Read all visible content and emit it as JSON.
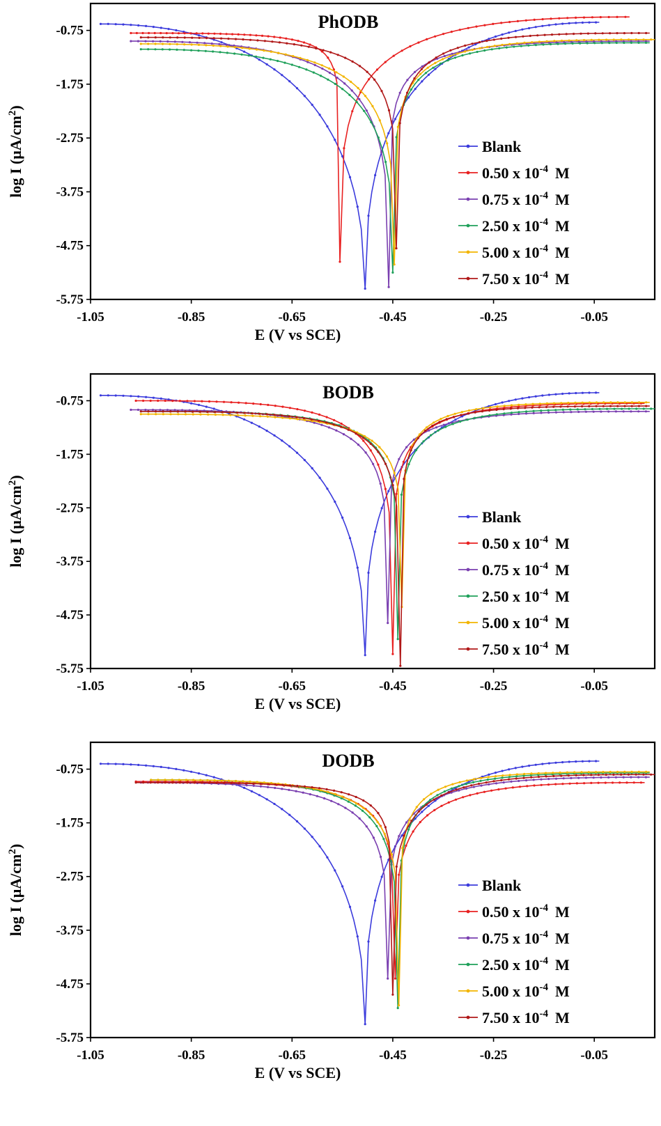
{
  "chart_data": [
    {
      "type": "line",
      "title": "PhODB",
      "xlabel": "E (V vs SCE)",
      "ylabel_base": "log I (μA/cm",
      "ylabel_sup": "2",
      "ylabel_end": ")",
      "xlim": [
        -1.05,
        0.07
      ],
      "ylim": [
        -5.75,
        -0.25
      ],
      "xticks": [
        "-1.05",
        "-0.85",
        "-0.65",
        "-0.45",
        "-0.25",
        "-0.05"
      ],
      "yticks": [
        "-0.75",
        "-1.75",
        "-2.75",
        "-3.75",
        "-4.75",
        "-5.75"
      ],
      "series": [
        {
          "name": "Blank",
          "color": "#3b3bdc",
          "ecorr": -0.505,
          "min": -5.55,
          "left": [
            -1.03,
            -0.63
          ],
          "right": [
            -0.04,
            -0.6
          ],
          "cat": [
            1.0,
            0.5
          ],
          "an": [
            1.0,
            0.45
          ]
        },
        {
          "name": "0.50 x 10",
          "color": "#e82020",
          "ecorr": -0.555,
          "min": -5.05,
          "left": [
            -0.97,
            -0.8
          ],
          "right": [
            0.02,
            -0.5
          ],
          "cat": [
            1.45,
            0.18
          ],
          "an": [
            1.1,
            0.32
          ]
        },
        {
          "name": "0.75 x 10",
          "color": "#7a3fb0",
          "ecorr": -0.458,
          "min": -5.52,
          "left": [
            -0.97,
            -0.95
          ],
          "right": [
            0.06,
            -0.95
          ],
          "cat": [
            1.15,
            0.33
          ],
          "an": [
            1.25,
            0.22
          ]
        },
        {
          "name": "2.50 x 10",
          "color": "#1fa05a",
          "ecorr": -0.45,
          "min": -5.25,
          "left": [
            -0.95,
            -1.1
          ],
          "right": [
            0.06,
            -0.98
          ],
          "cat": [
            1.1,
            0.36
          ],
          "an": [
            1.45,
            0.28
          ]
        },
        {
          "name": "5.00 x 10",
          "color": "#f2b400",
          "ecorr": -0.447,
          "min": -5.1,
          "left": [
            -0.95,
            -1.0
          ],
          "right": [
            0.07,
            -0.92
          ],
          "cat": [
            1.15,
            0.33
          ],
          "an": [
            1.35,
            0.26
          ]
        },
        {
          "name": "7.50 x 10",
          "color": "#b01818",
          "ecorr": -0.443,
          "min": -4.8,
          "left": [
            -0.95,
            -0.88
          ],
          "right": [
            0.06,
            -0.8
          ],
          "cat": [
            1.3,
            0.28
          ],
          "an": [
            1.4,
            0.28
          ]
        }
      ],
      "legend": {
        "position": "right",
        "superscript": "-4",
        "unit": "M"
      }
    },
    {
      "type": "line",
      "title": "BODB",
      "xlabel": "E (V vs SCE)",
      "ylabel_base": "log I (μA/cm",
      "ylabel_sup": "2",
      "ylabel_end": ")",
      "xlim": [
        -1.05,
        0.07
      ],
      "ylim": [
        -5.75,
        -0.25
      ],
      "xticks": [
        "-1.05",
        "-0.85",
        "-0.65",
        "-0.45",
        "-0.25",
        "-0.05"
      ],
      "yticks": [
        "-0.75",
        "-1.75",
        "-2.75",
        "-3.75",
        "-4.75",
        "-5.75"
      ],
      "series": [
        {
          "name": "Blank",
          "color": "#3b3bdc",
          "ecorr": -0.505,
          "min": -5.5,
          "left": [
            -1.03,
            -0.65
          ],
          "right": [
            -0.04,
            -0.6
          ],
          "cat": [
            1.05,
            0.48
          ],
          "an": [
            1.05,
            0.42
          ]
        },
        {
          "name": "0.50 x 10",
          "color": "#e82020",
          "ecorr": -0.45,
          "min": -5.48,
          "left": [
            -0.96,
            -0.75
          ],
          "right": [
            0.05,
            -0.8
          ],
          "cat": [
            1.5,
            0.3
          ],
          "an": [
            1.4,
            0.25
          ]
        },
        {
          "name": "0.75 x 10",
          "color": "#7a3fb0",
          "ecorr": -0.46,
          "min": -4.9,
          "left": [
            -0.97,
            -0.92
          ],
          "right": [
            0.06,
            -0.95
          ],
          "cat": [
            1.3,
            0.28
          ],
          "an": [
            1.35,
            0.24
          ]
        },
        {
          "name": "2.50 x 10",
          "color": "#1fa05a",
          "ecorr": -0.44,
          "min": -5.2,
          "left": [
            -0.95,
            -0.95
          ],
          "right": [
            0.07,
            -0.9
          ],
          "cat": [
            1.45,
            0.26
          ],
          "an": [
            1.45,
            0.26
          ]
        },
        {
          "name": "5.00 x 10",
          "color": "#f2b400",
          "ecorr": -0.432,
          "min": -4.6,
          "left": [
            -0.95,
            -1.0
          ],
          "right": [
            0.06,
            -0.78
          ],
          "cat": [
            1.35,
            0.26
          ],
          "an": [
            1.45,
            0.24
          ]
        },
        {
          "name": "7.50 x 10",
          "color": "#b01818",
          "ecorr": -0.435,
          "min": -5.7,
          "left": [
            -0.95,
            -0.95
          ],
          "right": [
            0.06,
            -0.85
          ],
          "cat": [
            1.45,
            0.26
          ],
          "an": [
            1.55,
            0.22
          ]
        }
      ],
      "legend": {
        "position": "right",
        "superscript": "-4",
        "unit": "M"
      }
    },
    {
      "type": "line",
      "title": "DODB",
      "xlabel": "E (V vs SCE)",
      "ylabel_base": "log I (μA/cm",
      "ylabel_sup": "2",
      "ylabel_end": ")",
      "xlim": [
        -1.05,
        0.07
      ],
      "ylim": [
        -5.75,
        -0.25
      ],
      "xticks": [
        "-1.05",
        "-0.85",
        "-0.65",
        "-0.45",
        "-0.25",
        "-0.05"
      ],
      "yticks": [
        "-0.75",
        "-1.75",
        "-2.75",
        "-3.75",
        "-4.75",
        "-5.75"
      ],
      "series": [
        {
          "name": "Blank",
          "color": "#3b3bdc",
          "ecorr": -0.505,
          "min": -5.5,
          "left": [
            -1.03,
            -0.65
          ],
          "right": [
            -0.04,
            -0.6
          ],
          "cat": [
            1.05,
            0.48
          ],
          "an": [
            1.05,
            0.42
          ]
        },
        {
          "name": "0.50 x 10",
          "color": "#e82020",
          "ecorr": -0.445,
          "min": -4.65,
          "left": [
            -0.96,
            -0.98
          ],
          "right": [
            0.05,
            -1.0
          ],
          "cat": [
            1.5,
            0.28
          ],
          "an": [
            1.3,
            0.3
          ]
        },
        {
          "name": "0.75 x 10",
          "color": "#7a3fb0",
          "ecorr": -0.46,
          "min": -4.65,
          "left": [
            -0.95,
            -1.0
          ],
          "right": [
            0.06,
            -0.9
          ],
          "cat": [
            1.3,
            0.3
          ],
          "an": [
            1.3,
            0.28
          ]
        },
        {
          "name": "2.50 x 10",
          "color": "#1fa05a",
          "ecorr": -0.44,
          "min": -5.2,
          "left": [
            -0.93,
            -0.95
          ],
          "right": [
            0.06,
            -0.82
          ],
          "cat": [
            1.45,
            0.3
          ],
          "an": [
            1.45,
            0.26
          ]
        },
        {
          "name": "5.00 x 10",
          "color": "#f2b400",
          "ecorr": -0.438,
          "min": -5.15,
          "left": [
            -0.93,
            -0.95
          ],
          "right": [
            0.06,
            -0.8
          ],
          "cat": [
            1.4,
            0.28
          ],
          "an": [
            1.5,
            0.24
          ]
        },
        {
          "name": "7.50 x 10",
          "color": "#b01818",
          "ecorr": -0.45,
          "min": -4.95,
          "left": [
            -0.96,
            -1.0
          ],
          "right": [
            0.07,
            -0.85
          ],
          "cat": [
            1.55,
            0.22
          ],
          "an": [
            1.4,
            0.28
          ]
        }
      ],
      "legend": {
        "position": "right",
        "superscript": "-4",
        "unit": "M"
      }
    }
  ]
}
